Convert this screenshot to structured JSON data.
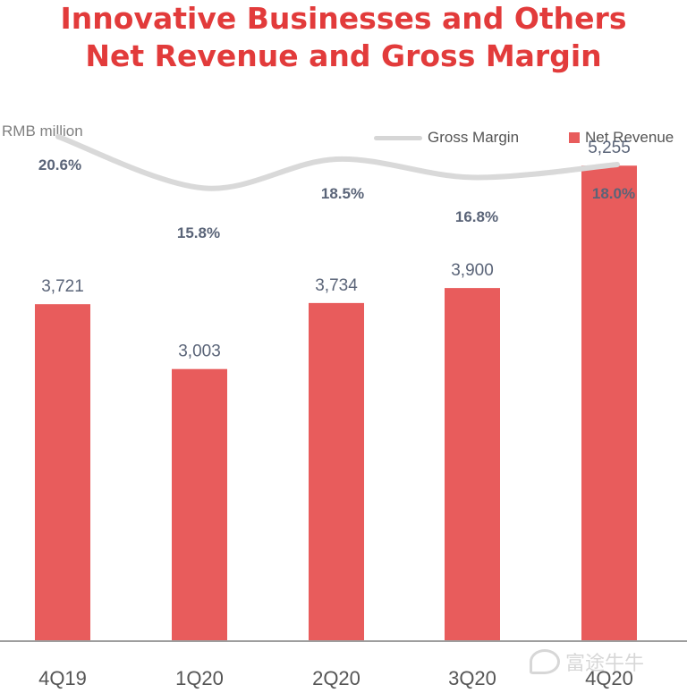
{
  "title": {
    "line1": "Innovative Businesses and Others",
    "line2": "Net Revenue and Gross Margin"
  },
  "unit_label": "RMB million",
  "legend": {
    "line_label": "Gross Margin",
    "bar_label": "Net Revenue"
  },
  "watermark": "富途牛牛",
  "colors": {
    "bar": "#E85C5C",
    "line": "#D9D9D9",
    "title": "#E23B3B",
    "bar_label": "#5A6478",
    "margin_label": "#5A6478"
  },
  "chart_data": {
    "type": "bar",
    "categories": [
      "4Q19",
      "1Q20",
      "2Q20",
      "3Q20",
      "4Q20"
    ],
    "series": [
      {
        "name": "Net Revenue",
        "type": "bar",
        "values": [
          3721,
          3003,
          3734,
          3900,
          5255
        ],
        "labels": [
          "3,721",
          "3,003",
          "3,734",
          "3,900",
          "5,255"
        ]
      },
      {
        "name": "Gross Margin",
        "type": "line",
        "values": [
          20.6,
          15.8,
          18.5,
          16.8,
          18.0
        ],
        "labels": [
          "20.6%",
          "15.8%",
          "18.5%",
          "16.8%",
          "18.0%"
        ]
      }
    ],
    "ylim": [
      0,
      6000
    ],
    "margin_ylim": [
      0,
      30
    ],
    "grid": false,
    "legend_position": "top-right"
  }
}
